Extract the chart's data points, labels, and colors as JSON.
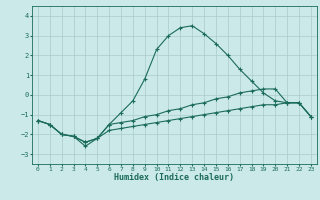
{
  "title": "",
  "xlabel": "Humidex (Indice chaleur)",
  "ylabel": "",
  "background_color": "#cce9e9",
  "grid_color": "#aacccc",
  "line_color": "#1a6b5a",
  "xlim": [
    -0.5,
    23.5
  ],
  "ylim": [
    -3.5,
    4.5
  ],
  "xticks": [
    0,
    1,
    2,
    3,
    4,
    5,
    6,
    7,
    8,
    9,
    10,
    11,
    12,
    13,
    14,
    15,
    16,
    17,
    18,
    19,
    20,
    21,
    22,
    23
  ],
  "yticks": [
    -3,
    -2,
    -1,
    0,
    1,
    2,
    3,
    4
  ],
  "line1_x": [
    0,
    1,
    2,
    3,
    4,
    5,
    6,
    7,
    8,
    9,
    10,
    11,
    12,
    13,
    14,
    15,
    16,
    17,
    18,
    19,
    20,
    21,
    22,
    23
  ],
  "line1_y": [
    -1.3,
    -1.5,
    -2.0,
    -2.1,
    -2.6,
    -2.2,
    -1.5,
    -0.9,
    -0.3,
    0.8,
    2.3,
    3.0,
    3.4,
    3.5,
    3.1,
    2.6,
    2.0,
    1.3,
    0.7,
    0.1,
    -0.3,
    -0.4,
    -0.4,
    -1.1
  ],
  "line2_x": [
    0,
    1,
    2,
    3,
    4,
    5,
    6,
    7,
    8,
    9,
    10,
    11,
    12,
    13,
    14,
    15,
    16,
    17,
    18,
    19,
    20,
    21,
    22,
    23
  ],
  "line2_y": [
    -1.3,
    -1.5,
    -2.0,
    -2.1,
    -2.4,
    -2.2,
    -1.5,
    -1.4,
    -1.3,
    -1.1,
    -1.0,
    -0.8,
    -0.7,
    -0.5,
    -0.4,
    -0.2,
    -0.1,
    0.1,
    0.2,
    0.3,
    0.3,
    -0.4,
    -0.4,
    -1.1
  ],
  "line3_x": [
    0,
    1,
    2,
    3,
    4,
    5,
    6,
    7,
    8,
    9,
    10,
    11,
    12,
    13,
    14,
    15,
    16,
    17,
    18,
    19,
    20,
    21,
    22,
    23
  ],
  "line3_y": [
    -1.3,
    -1.5,
    -2.0,
    -2.1,
    -2.4,
    -2.2,
    -1.8,
    -1.7,
    -1.6,
    -1.5,
    -1.4,
    -1.3,
    -1.2,
    -1.1,
    -1.0,
    -0.9,
    -0.8,
    -0.7,
    -0.6,
    -0.5,
    -0.5,
    -0.4,
    -0.4,
    -1.1
  ]
}
